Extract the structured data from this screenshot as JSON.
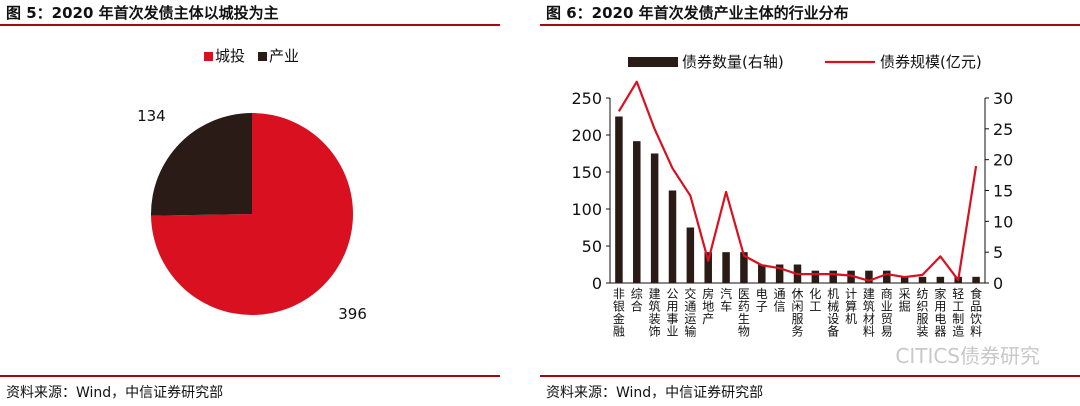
{
  "figures": [
    {
      "title": "图 5：2020 年首次发债主体以城投为主",
      "source": "资料来源：Wind，中信证券研究部"
    },
    {
      "title": "图 6：2020 年首次发债产业主体的行业分布",
      "source": "资料来源：Wind，中信证券研究部"
    }
  ],
  "watermark": "CITICS债券研究",
  "chart_data": [
    {
      "type": "pie",
      "title": "2020 年首次发债主体以城投为主",
      "legend_position": "top",
      "slices": [
        {
          "label": "城投",
          "value": 396,
          "color": "#d9101f"
        },
        {
          "label": "产业",
          "value": 134,
          "color": "#2a1b17"
        }
      ]
    },
    {
      "type": "bar",
      "title": "2020 年首次发债产业主体的行业分布",
      "legend_position": "top",
      "categories": [
        "非银金融",
        "综合",
        "建筑装饰",
        "公用事业",
        "交通运输",
        "房地产",
        "汽车",
        "医药生物",
        "电子",
        "通信",
        "休闲服务",
        "化工",
        "机械设备",
        "计算机",
        "建筑材料",
        "商业贸易",
        "采掘",
        "纺织服装",
        "家用电器",
        "轻工制造",
        "食品饮料"
      ],
      "series": [
        {
          "name": "债券规模(亿元)",
          "axis": "left",
          "type": "line",
          "color": "#d9101f",
          "values": [
            232,
            272,
            208,
            155,
            118,
            30,
            123,
            37,
            24,
            20,
            12,
            12,
            12,
            10,
            3,
            12,
            8,
            11,
            36,
            4,
            158
          ]
        },
        {
          "name": "债券数量(右轴)",
          "axis": "right",
          "type": "bar",
          "color": "#2a1b17",
          "values": [
            27,
            23,
            21,
            15,
            9,
            5,
            5,
            5,
            3,
            3,
            3,
            2,
            2,
            2,
            2,
            2,
            1,
            1,
            1,
            1,
            1
          ]
        }
      ],
      "y_left": {
        "min": 0,
        "max": 250,
        "ticks": [
          0,
          50,
          100,
          150,
          200,
          250
        ]
      },
      "y_right": {
        "min": 0,
        "max": 30,
        "ticks": [
          0,
          5,
          10,
          15,
          20,
          25,
          30
        ]
      }
    }
  ]
}
